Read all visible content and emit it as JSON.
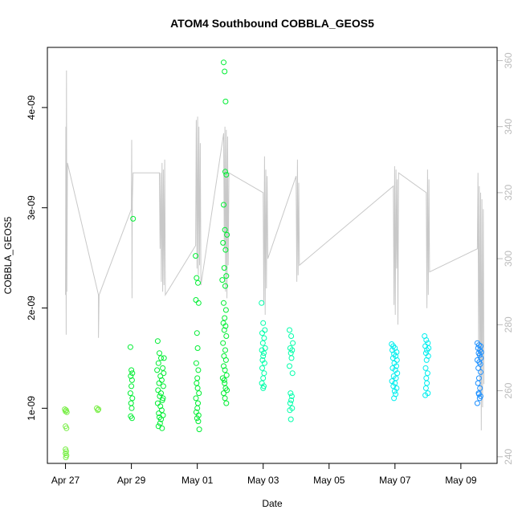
{
  "chart_data": {
    "type": "scatter",
    "title": "ATOM4 Southbound COBBLA_GEOS5",
    "xlabel": "Date",
    "ylabel": "COBBLA_GEOS5",
    "x_tick_labels": [
      "Apr 27",
      "Apr 29",
      "May 01",
      "May 03",
      "May 05",
      "May 07",
      "May 09"
    ],
    "x_tick_days": [
      0,
      2,
      4,
      6,
      8,
      10,
      12
    ],
    "xlim_days": [
      -0.55,
      13.1
    ],
    "y_ticks": [
      1e-09,
      2e-09,
      3e-09,
      4e-09
    ],
    "y_tick_labels": [
      "1e-09",
      "2e-09",
      "3e-09",
      "4e-09"
    ],
    "ylim": [
      4.5e-10,
      4.6e-09
    ],
    "y2_ticks": [
      240,
      260,
      280,
      300,
      320,
      340,
      360
    ],
    "y2_tick_labels": [
      "240",
      "260",
      "280",
      "300",
      "320",
      "340",
      "360"
    ],
    "y2lim": [
      238,
      364
    ],
    "y2_line_color": "#c8c8c8",
    "point_colors": {
      "start": "#77ee44",
      "mid": "#00ee33",
      "late": "#00ffaa",
      "cyan": "#00eeee",
      "end": "#1e90ff"
    },
    "series": [
      {
        "points": [
          [
            -0.02,
            9.9e-10
          ],
          [
            0.0,
            9.7e-10
          ],
          [
            0.02,
            9.8e-10
          ],
          [
            0.04,
            9.6e-10
          ],
          [
            0.0,
            8.2e-10
          ],
          [
            0.03,
            8e-10
          ],
          [
            0.0,
            5.9e-10
          ],
          [
            0.02,
            5.7e-10
          ],
          [
            0.0,
            5.5e-10
          ],
          [
            0.03,
            5.3e-10
          ],
          [
            0.01,
            5.1e-10
          ],
          [
            0.95,
            1e-09
          ],
          [
            0.98,
            9.8e-10
          ],
          [
            1.0,
            9.9e-10
          ],
          [
            1.97,
            1.61e-09
          ],
          [
            2.0,
            1.38e-09
          ],
          [
            2.03,
            1.35e-09
          ],
          [
            1.98,
            1.32e-09
          ],
          [
            2.02,
            1.28e-09
          ],
          [
            2.0,
            1.22e-09
          ],
          [
            1.97,
            1.15e-09
          ],
          [
            2.03,
            1.1e-09
          ],
          [
            1.99,
            1.05e-09
          ],
          [
            2.01,
            1e-09
          ],
          [
            1.98,
            9.2e-10
          ],
          [
            2.02,
            9e-10
          ],
          [
            2.05,
            2.89e-09
          ],
          [
            2.8,
            1.67e-09
          ],
          [
            2.85,
            1.55e-09
          ],
          [
            2.9,
            1.5e-09
          ],
          [
            2.82,
            1.45e-09
          ],
          [
            2.95,
            1.4e-09
          ],
          [
            2.78,
            1.38e-09
          ],
          [
            2.88,
            1.32e-09
          ],
          [
            2.92,
            1.28e-09
          ],
          [
            2.84,
            1.25e-09
          ],
          [
            2.97,
            1.22e-09
          ],
          [
            2.81,
            1.18e-09
          ],
          [
            2.9,
            1.15e-09
          ],
          [
            2.86,
            1.12e-09
          ],
          [
            2.94,
            1.08e-09
          ],
          [
            2.8,
            1.05e-09
          ],
          [
            2.88,
            1.02e-09
          ],
          [
            2.92,
            9.8e-10
          ],
          [
            2.83,
            9.5e-10
          ],
          [
            2.96,
            9.3e-10
          ],
          [
            2.85,
            9.1e-10
          ],
          [
            2.9,
            8.9e-10
          ],
          [
            2.87,
            8.5e-10
          ],
          [
            2.82,
            8.2e-10
          ],
          [
            2.93,
            8e-10
          ],
          [
            2.99,
            1.5e-09
          ],
          [
            2.98,
            1.35e-09
          ],
          [
            2.96,
            1.1e-09
          ],
          [
            3.95,
            2.52e-09
          ],
          [
            3.98,
            2.3e-09
          ],
          [
            4.02,
            2.25e-09
          ],
          [
            3.96,
            2.08e-09
          ],
          [
            4.04,
            2.05e-09
          ],
          [
            3.99,
            1.75e-09
          ],
          [
            4.01,
            1.6e-09
          ],
          [
            3.97,
            1.45e-09
          ],
          [
            4.03,
            1.38e-09
          ],
          [
            4.0,
            1.3e-09
          ],
          [
            3.98,
            1.25e-09
          ],
          [
            4.05,
            1.15e-09
          ],
          [
            3.96,
            1.1e-09
          ],
          [
            4.02,
            1.05e-09
          ],
          [
            4.0,
            1e-09
          ],
          [
            3.97,
            9.6e-10
          ],
          [
            4.04,
            9.3e-10
          ],
          [
            3.99,
            9e-10
          ],
          [
            4.03,
            8.7e-10
          ],
          [
            4.06,
            7.9e-10
          ],
          [
            4.01,
            1.2e-09
          ],
          [
            4.8,
            4.45e-09
          ],
          [
            4.83,
            4.36e-09
          ],
          [
            4.86,
            4.06e-09
          ],
          [
            4.85,
            3.36e-09
          ],
          [
            4.88,
            3.33e-09
          ],
          [
            4.8,
            3.03e-09
          ],
          [
            4.84,
            2.78e-09
          ],
          [
            4.9,
            2.73e-09
          ],
          [
            4.78,
            2.65e-09
          ],
          [
            4.86,
            2.58e-09
          ],
          [
            4.82,
            2.4e-09
          ],
          [
            4.88,
            2.32e-09
          ],
          [
            4.76,
            2.28e-09
          ],
          [
            4.85,
            2.22e-09
          ],
          [
            4.8,
            2.05e-09
          ],
          [
            4.87,
            1.98e-09
          ],
          [
            4.83,
            1.9e-09
          ],
          [
            4.79,
            1.85e-09
          ],
          [
            4.86,
            1.82e-09
          ],
          [
            4.82,
            1.78e-09
          ],
          [
            4.88,
            1.72e-09
          ],
          [
            4.78,
            1.65e-09
          ],
          [
            4.85,
            1.58e-09
          ],
          [
            4.81,
            1.52e-09
          ],
          [
            4.87,
            1.48e-09
          ],
          [
            4.8,
            1.42e-09
          ],
          [
            4.84,
            1.38e-09
          ],
          [
            4.89,
            1.33e-09
          ],
          [
            4.77,
            1.3e-09
          ],
          [
            4.83,
            1.25e-09
          ],
          [
            4.86,
            1.2e-09
          ],
          [
            4.8,
            1.15e-09
          ],
          [
            4.84,
            1.1e-09
          ],
          [
            4.88,
            1.05e-09
          ],
          [
            4.82,
            1.28e-09
          ],
          [
            4.9,
            1.18e-09
          ],
          [
            5.95,
            2.05e-09
          ],
          [
            6.0,
            1.85e-09
          ],
          [
            6.05,
            1.78e-09
          ],
          [
            5.97,
            1.75e-09
          ],
          [
            6.03,
            1.7e-09
          ],
          [
            5.99,
            1.65e-09
          ],
          [
            6.06,
            1.6e-09
          ],
          [
            5.96,
            1.58e-09
          ],
          [
            6.02,
            1.55e-09
          ],
          [
            6.0,
            1.52e-09
          ],
          [
            5.98,
            1.48e-09
          ],
          [
            6.04,
            1.45e-09
          ],
          [
            5.97,
            1.4e-09
          ],
          [
            6.03,
            1.35e-09
          ],
          [
            6.0,
            1.3e-09
          ],
          [
            5.96,
            1.25e-09
          ],
          [
            6.02,
            1.22e-09
          ],
          [
            6.0,
            1.2e-09
          ],
          [
            6.8,
            1.78e-09
          ],
          [
            6.85,
            1.72e-09
          ],
          [
            6.9,
            1.65e-09
          ],
          [
            6.82,
            1.6e-09
          ],
          [
            6.88,
            1.58e-09
          ],
          [
            6.84,
            1.55e-09
          ],
          [
            6.86,
            1.5e-09
          ],
          [
            6.8,
            1.42e-09
          ],
          [
            6.89,
            1.35e-09
          ],
          [
            6.83,
            1.15e-09
          ],
          [
            6.87,
            1.12e-09
          ],
          [
            6.85,
            1.08e-09
          ],
          [
            6.82,
            1.05e-09
          ],
          [
            6.88,
            1e-09
          ],
          [
            6.81,
            9.8e-10
          ],
          [
            6.84,
            8.9e-10
          ],
          [
            9.9,
            1.64e-09
          ],
          [
            9.95,
            1.62e-09
          ],
          [
            10.0,
            1.6e-09
          ],
          [
            9.92,
            1.58e-09
          ],
          [
            10.05,
            1.56e-09
          ],
          [
            9.97,
            1.54e-09
          ],
          [
            10.02,
            1.52e-09
          ],
          [
            9.94,
            1.5e-09
          ],
          [
            10.06,
            1.48e-09
          ],
          [
            9.98,
            1.45e-09
          ],
          [
            10.04,
            1.42e-09
          ],
          [
            9.93,
            1.4e-09
          ],
          [
            10.01,
            1.38e-09
          ],
          [
            10.07,
            1.35e-09
          ],
          [
            9.96,
            1.32e-09
          ],
          [
            10.03,
            1.3e-09
          ],
          [
            9.91,
            1.27e-09
          ],
          [
            10.0,
            1.25e-09
          ],
          [
            9.95,
            1.22e-09
          ],
          [
            10.05,
            1.2e-09
          ],
          [
            9.99,
            1.17e-09
          ],
          [
            10.02,
            1.14e-09
          ],
          [
            9.97,
            1.1e-09
          ],
          [
            10.9,
            1.72e-09
          ],
          [
            10.95,
            1.68e-09
          ],
          [
            11.0,
            1.65e-09
          ],
          [
            10.92,
            1.62e-09
          ],
          [
            11.02,
            1.6e-09
          ],
          [
            10.97,
            1.58e-09
          ],
          [
            10.94,
            1.55e-09
          ],
          [
            11.01,
            1.52e-09
          ],
          [
            10.96,
            1.48e-09
          ],
          [
            10.93,
            1.4e-09
          ],
          [
            10.99,
            1.35e-09
          ],
          [
            10.95,
            1.3e-09
          ],
          [
            10.97,
            1.25e-09
          ],
          [
            10.94,
            1.2e-09
          ],
          [
            11.0,
            1.15e-09
          ],
          [
            10.92,
            1.13e-09
          ],
          [
            12.5,
            1.65e-09
          ],
          [
            12.55,
            1.63e-09
          ],
          [
            12.6,
            1.62e-09
          ],
          [
            12.52,
            1.6e-09
          ],
          [
            12.58,
            1.58e-09
          ],
          [
            12.62,
            1.56e-09
          ],
          [
            12.54,
            1.55e-09
          ],
          [
            12.57,
            1.53e-09
          ],
          [
            12.61,
            1.5e-09
          ],
          [
            12.5,
            1.48e-09
          ],
          [
            12.56,
            1.46e-09
          ],
          [
            12.59,
            1.44e-09
          ],
          [
            12.53,
            1.4e-09
          ],
          [
            12.6,
            1.36e-09
          ],
          [
            12.55,
            1.3e-09
          ],
          [
            12.52,
            1.25e-09
          ],
          [
            12.58,
            1.2e-09
          ],
          [
            12.54,
            1.15e-09
          ],
          [
            12.6,
            1.12e-09
          ],
          [
            12.57,
            1.1e-09
          ],
          [
            12.5,
            1.05e-09
          ],
          [
            12.55,
            1.14e-09
          ]
        ]
      }
    ],
    "secondary_line": {
      "points": [
        [
          0.0,
          289
        ],
        [
          0.01,
          340
        ],
        [
          0.02,
          277
        ],
        [
          0.03,
          357
        ],
        [
          0.04,
          290
        ],
        [
          0.06,
          329
        ],
        [
          1.0,
          289
        ],
        [
          1.0,
          276
        ],
        [
          1.02,
          289
        ],
        [
          2.0,
          315
        ],
        [
          2.01,
          336
        ],
        [
          2.02,
          288
        ],
        [
          2.03,
          318
        ],
        [
          2.05,
          326
        ],
        [
          2.85,
          326
        ],
        [
          2.87,
          303
        ],
        [
          2.89,
          326
        ],
        [
          2.91,
          293
        ],
        [
          2.93,
          329
        ],
        [
          2.95,
          290
        ],
        [
          2.97,
          327
        ],
        [
          2.99,
          292
        ],
        [
          3.01,
          330
        ],
        [
          3.03,
          289
        ],
        [
          3.95,
          304
        ],
        [
          3.97,
          342
        ],
        [
          3.99,
          297
        ],
        [
          4.01,
          343
        ],
        [
          4.03,
          295
        ],
        [
          4.05,
          340
        ],
        [
          4.07,
          298
        ],
        [
          4.09,
          335
        ],
        [
          4.11,
          292
        ],
        [
          4.8,
          338
        ],
        [
          4.82,
          303
        ],
        [
          4.84,
          340
        ],
        [
          4.86,
          290
        ],
        [
          4.88,
          339
        ],
        [
          4.9,
          288
        ],
        [
          4.92,
          337
        ],
        [
          4.94,
          298
        ],
        [
          4.96,
          326
        ],
        [
          6.0,
          320
        ],
        [
          6.02,
          286
        ],
        [
          6.04,
          331
        ],
        [
          6.06,
          283
        ],
        [
          6.08,
          327
        ],
        [
          6.1,
          291
        ],
        [
          6.12,
          325
        ],
        [
          6.14,
          300
        ],
        [
          7.0,
          325
        ],
        [
          7.02,
          293
        ],
        [
          7.04,
          330
        ],
        [
          7.06,
          295
        ],
        [
          7.08,
          323
        ],
        [
          7.1,
          298
        ],
        [
          9.95,
          322
        ],
        [
          9.97,
          286
        ],
        [
          9.99,
          328
        ],
        [
          10.01,
          283
        ],
        [
          10.03,
          327
        ],
        [
          10.05,
          297
        ],
        [
          10.07,
          324
        ],
        [
          10.09,
          280
        ],
        [
          10.11,
          326
        ],
        [
          10.95,
          320
        ],
        [
          10.97,
          285
        ],
        [
          10.99,
          327
        ],
        [
          11.01,
          289
        ],
        [
          11.03,
          324
        ],
        [
          11.05,
          296
        ],
        [
          12.5,
          303
        ],
        [
          12.52,
          326
        ],
        [
          12.54,
          270
        ],
        [
          12.56,
          322
        ],
        [
          12.58,
          259
        ],
        [
          12.6,
          320
        ],
        [
          12.62,
          248
        ],
        [
          12.64,
          318
        ],
        [
          12.66,
          255
        ],
        [
          12.68,
          315
        ],
        [
          12.7,
          262
        ]
      ]
    }
  }
}
